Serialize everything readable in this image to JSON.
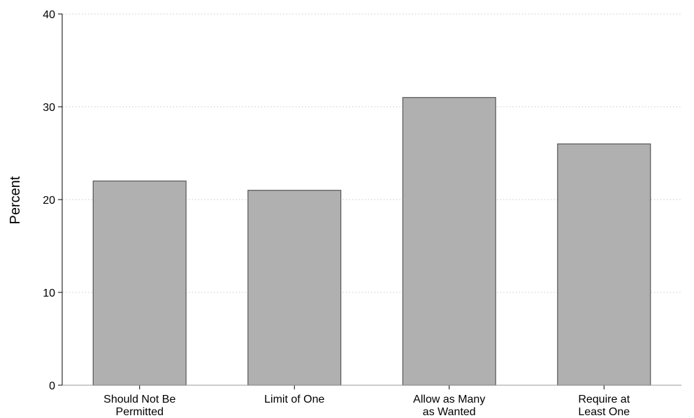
{
  "chart_data": {
    "type": "bar",
    "title": "",
    "xlabel": "",
    "ylabel": "Percent",
    "categories": [
      [
        "Should Not Be",
        "Permitted"
      ],
      [
        "Limit of One"
      ],
      [
        "Allow as Many",
        "as Wanted"
      ],
      [
        "Require at",
        "Least One"
      ]
    ],
    "values": [
      22,
      21,
      31,
      26
    ],
    "ylim": [
      0,
      40
    ],
    "yticks": [
      0,
      10,
      20,
      30,
      40
    ],
    "grid": true,
    "bar_color": "#b0b0b0",
    "bar_edge_color": "#555555"
  }
}
